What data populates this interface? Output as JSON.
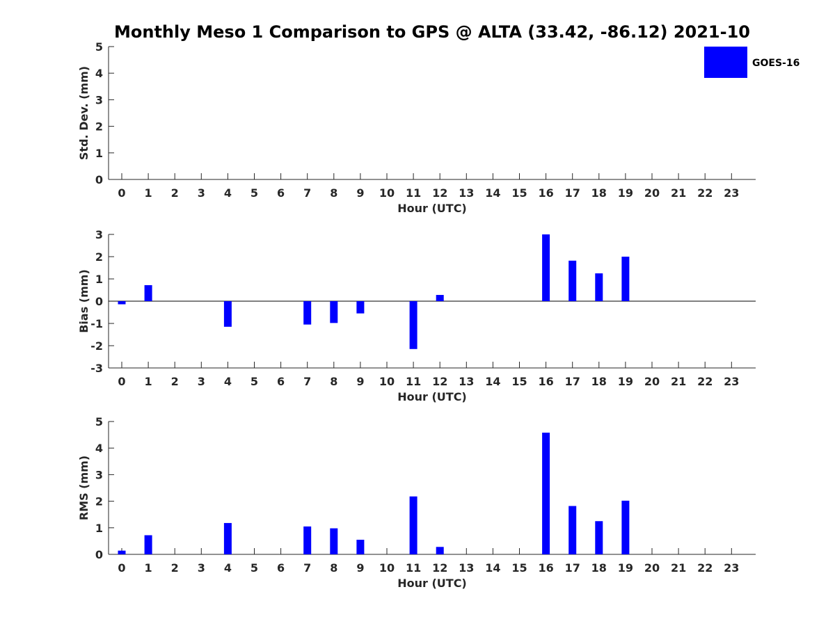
{
  "colors": {
    "bar": "#0000ff",
    "axis": "#262626",
    "background": "#ffffff"
  },
  "chart_data": [
    {
      "type": "bar",
      "title": "Monthly Meso 1 Comparison to GPS @ ALTA (33.42, -86.12) 2021-10",
      "xlabel": "Hour (UTC)",
      "ylabel": "Std. Dev. (mm)",
      "ylim": [
        0,
        5
      ],
      "yticks": [
        "0",
        "1",
        "2",
        "3",
        "4",
        "5"
      ],
      "categories": [
        "0",
        "1",
        "2",
        "3",
        "4",
        "5",
        "6",
        "7",
        "8",
        "9",
        "10",
        "11",
        "12",
        "13",
        "14",
        "15",
        "16",
        "17",
        "18",
        "19",
        "20",
        "21",
        "22",
        "23"
      ],
      "series": [
        {
          "name": "GOES-16",
          "values": [
            null,
            null,
            null,
            null,
            null,
            null,
            null,
            null,
            null,
            null,
            null,
            null,
            null,
            null,
            null,
            null,
            null,
            null,
            null,
            null,
            null,
            null,
            null,
            null
          ]
        }
      ],
      "legend": "top-right",
      "grid": false
    },
    {
      "type": "bar",
      "xlabel": "Hour (UTC)",
      "ylabel": "Bias (mm)",
      "ylim": [
        -3,
        3
      ],
      "yticks": [
        "-3",
        "-2",
        "-1",
        "0",
        "1",
        "2",
        "3"
      ],
      "categories": [
        "0",
        "1",
        "2",
        "3",
        "4",
        "5",
        "6",
        "7",
        "8",
        "9",
        "10",
        "11",
        "12",
        "13",
        "14",
        "15",
        "16",
        "17",
        "18",
        "19",
        "20",
        "21",
        "22",
        "23"
      ],
      "series": [
        {
          "values": [
            -0.14,
            0.72,
            null,
            null,
            -1.15,
            null,
            null,
            -1.05,
            -0.98,
            -0.55,
            null,
            -2.15,
            0.28,
            null,
            null,
            null,
            3.0,
            1.82,
            1.25,
            2.0,
            null,
            null,
            null,
            null
          ]
        }
      ],
      "zero_line": true,
      "grid": false
    },
    {
      "type": "bar",
      "xlabel": "Hour (UTC)",
      "ylabel": "RMS (mm)",
      "ylim": [
        0,
        5
      ],
      "yticks": [
        "0",
        "1",
        "2",
        "3",
        "4",
        "5"
      ],
      "categories": [
        "0",
        "1",
        "2",
        "3",
        "4",
        "5",
        "6",
        "7",
        "8",
        "9",
        "10",
        "11",
        "12",
        "13",
        "14",
        "15",
        "16",
        "17",
        "18",
        "19",
        "20",
        "21",
        "22",
        "23"
      ],
      "series": [
        {
          "values": [
            0.14,
            0.72,
            null,
            null,
            1.18,
            null,
            null,
            1.05,
            0.98,
            0.55,
            null,
            2.18,
            0.28,
            null,
            null,
            null,
            4.58,
            1.82,
            1.25,
            2.02,
            null,
            null,
            null,
            null
          ]
        }
      ],
      "grid": false
    }
  ],
  "legend": {
    "label": "GOES-16"
  }
}
